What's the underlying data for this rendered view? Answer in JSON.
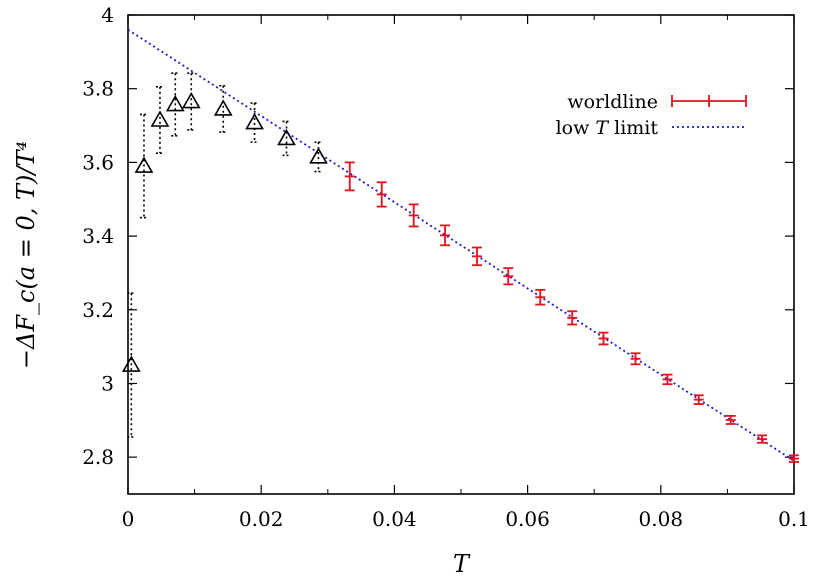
{
  "chart_data": {
    "type": "scatter",
    "title": "",
    "xlabel": "T",
    "ylabel": "−ΔF_c(a = 0, T)/T⁴",
    "xlim": [
      0,
      0.1
    ],
    "ylim": [
      2.7,
      4.0
    ],
    "x_ticks": [
      "0",
      "0.02",
      "0.04",
      "0.06",
      "0.08",
      "0.1"
    ],
    "y_ticks": [
      "2.8",
      "3",
      "3.2",
      "3.4",
      "3.6",
      "3.8",
      "4"
    ],
    "grid": false,
    "legend_position": "top-right",
    "series": [
      {
        "name": "worldline",
        "color": "#e8101a",
        "marker": "plus-errorbar",
        "points": [
          {
            "x": 0.0333,
            "y": 3.562,
            "err": 0.038
          },
          {
            "x": 0.0381,
            "y": 3.513,
            "err": 0.033
          },
          {
            "x": 0.0429,
            "y": 3.456,
            "err": 0.03
          },
          {
            "x": 0.0476,
            "y": 3.402,
            "err": 0.027
          },
          {
            "x": 0.0524,
            "y": 3.345,
            "err": 0.024
          },
          {
            "x": 0.0571,
            "y": 3.291,
            "err": 0.022
          },
          {
            "x": 0.0619,
            "y": 3.234,
            "err": 0.02
          },
          {
            "x": 0.0667,
            "y": 3.178,
            "err": 0.018
          },
          {
            "x": 0.0714,
            "y": 3.122,
            "err": 0.016
          },
          {
            "x": 0.0762,
            "y": 3.067,
            "err": 0.015
          },
          {
            "x": 0.081,
            "y": 3.011,
            "err": 0.013
          },
          {
            "x": 0.0857,
            "y": 2.956,
            "err": 0.012
          },
          {
            "x": 0.0905,
            "y": 2.901,
            "err": 0.011
          },
          {
            "x": 0.0952,
            "y": 2.849,
            "err": 0.01
          },
          {
            "x": 0.1,
            "y": 2.796,
            "err": 0.009
          }
        ]
      },
      {
        "name": "low T limit",
        "color": "#1a1acc",
        "style": "dotted-line",
        "points": [
          {
            "x": 0.0,
            "y": 3.96
          },
          {
            "x": 0.1,
            "y": 2.79
          }
        ]
      },
      {
        "name": "",
        "color": "#000000",
        "marker": "triangle-dotted-errorbar",
        "points": [
          {
            "x": 0.0005,
            "y": 3.05,
            "err": 0.195
          },
          {
            "x": 0.0024,
            "y": 3.59,
            "err": 0.14
          },
          {
            "x": 0.0048,
            "y": 3.715,
            "err": 0.09
          },
          {
            "x": 0.0071,
            "y": 3.757,
            "err": 0.085
          },
          {
            "x": 0.0095,
            "y": 3.765,
            "err": 0.077
          },
          {
            "x": 0.0143,
            "y": 3.745,
            "err": 0.063
          },
          {
            "x": 0.019,
            "y": 3.708,
            "err": 0.053
          },
          {
            "x": 0.0238,
            "y": 3.665,
            "err": 0.046
          },
          {
            "x": 0.0286,
            "y": 3.615,
            "err": 0.04
          }
        ]
      }
    ]
  }
}
